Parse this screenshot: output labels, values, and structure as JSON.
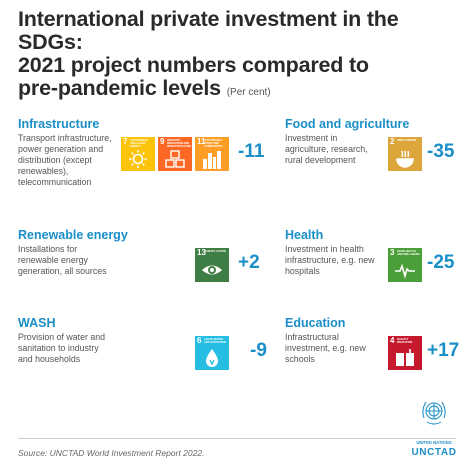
{
  "title": {
    "line1": "International private investment in the SDGs:",
    "line2": "2021 project numbers compared to",
    "line3": "pre-pandemic levels",
    "unit": "(Per cent)"
  },
  "sectors": {
    "infrastructure": {
      "head": "Infrastructure",
      "desc": "Transport infrastructure, power generation and distribution (except renewables), telecommunication",
      "value": "-11",
      "icons": [
        {
          "num": "7",
          "text": "AFFORDABLE AND CLEAN ENERGY",
          "color": "#fcc30b",
          "icon": "sun-icon"
        },
        {
          "num": "9",
          "text": "INDUSTRY, INNOVATION AND INFRASTRUCTURE",
          "color": "#fd6925",
          "icon": "cubes-icon"
        },
        {
          "num": "11",
          "text": "SUSTAINABLE CITIES AND COMMUNITIES",
          "color": "#fd9d24",
          "icon": "city-icon"
        }
      ]
    },
    "food": {
      "head": "Food and agriculture",
      "desc": "Investment in agriculture, research, rural development",
      "value": "-35",
      "icons": [
        {
          "num": "2",
          "text": "ZERO HUNGER",
          "color": "#dda63a",
          "icon": "bowl-icon"
        }
      ]
    },
    "renewable": {
      "head": "Renewable energy",
      "desc": "Installations for renewable energy generation, all sources",
      "value": "+2",
      "icons": [
        {
          "num": "13",
          "text": "CLIMATE ACTION",
          "color": "#3f7e44",
          "icon": "eye-globe-icon"
        }
      ]
    },
    "health": {
      "head": "Health",
      "desc": "Investment in health infrastructure, e.g. new hospitals",
      "value": "-25",
      "icons": [
        {
          "num": "3",
          "text": "GOOD HEALTH AND WELL-BEING",
          "color": "#4c9f38",
          "icon": "heartbeat-icon"
        }
      ]
    },
    "wash": {
      "head": "WASH",
      "desc": "Provision of water and sanitation to industry and households",
      "value": "-9",
      "icons": [
        {
          "num": "6",
          "text": "CLEAN WATER AND SANITATION",
          "color": "#26bde2",
          "icon": "water-drop-icon"
        }
      ]
    },
    "education": {
      "head": "Education",
      "desc": "Infrastructural investment, e.g. new schools",
      "value": "+17",
      "icons": [
        {
          "num": "4",
          "text": "QUALITY EDUCATION",
          "color": "#c5192d",
          "icon": "book-icon"
        }
      ]
    }
  },
  "source": "Source: UNCTAD World Investment Report 2022.",
  "logo": {
    "name": "UNITED NATIONS",
    "org": "UNCTAD",
    "icon": "un-emblem-icon"
  },
  "colors": {
    "accent": "#1a8fc7",
    "title": "#2a2a2a"
  }
}
